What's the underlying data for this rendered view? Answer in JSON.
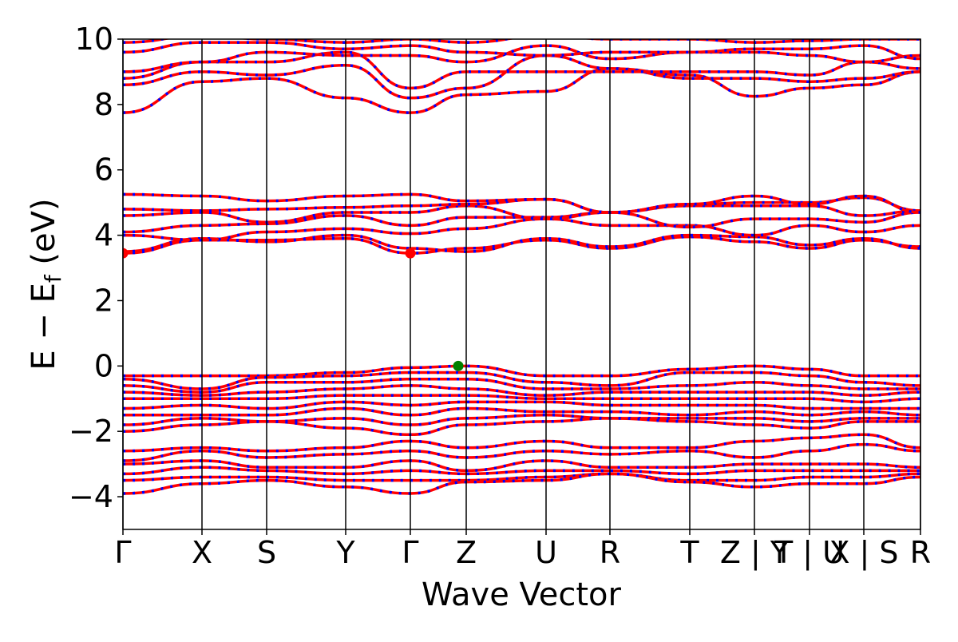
{
  "chart_data": {
    "type": "line",
    "title": "",
    "xlabel": "Wave Vector",
    "ylabel": "E − E",
    "ylabel_sub": "f",
    "ylabel_unit": " (eV)",
    "ylim": [
      -5,
      10
    ],
    "yticks": [
      -4,
      -2,
      0,
      2,
      4,
      6,
      8,
      10
    ],
    "ytick_labels": [
      "−4",
      "−2",
      "0",
      "2",
      "4",
      "6",
      "8",
      "10"
    ],
    "kpoints": [
      0,
      0.99,
      1.8,
      2.79,
      3.6,
      4.3,
      5.3,
      6.1,
      7.1,
      7.91,
      8.6,
      9.28,
      9.99
    ],
    "klabels": [
      "Γ",
      "X",
      "S",
      "Y",
      "Γ",
      "Z",
      "U",
      "R",
      "T",
      "Z | Y",
      "T | U",
      "X | S",
      "R"
    ],
    "series_colors": {
      "line": "#ff0000",
      "dash": "#0000ff"
    },
    "bands": [
      [
        3.45,
        3.85,
        3.85,
        3.9,
        3.45,
        3.6,
        3.85,
        3.6,
        3.95,
        3.8,
        3.6,
        3.85,
        3.65
      ],
      [
        3.5,
        3.9,
        3.8,
        4.0,
        3.6,
        3.5,
        3.9,
        3.65,
        4.0,
        3.95,
        3.7,
        3.9,
        3.6
      ],
      [
        4.0,
        3.85,
        4.1,
        4.2,
        4.05,
        4.2,
        4.5,
        4.3,
        4.3,
        4.0,
        4.3,
        4.1,
        4.3
      ],
      [
        4.1,
        4.3,
        4.35,
        4.6,
        4.3,
        4.55,
        4.55,
        4.7,
        4.25,
        4.5,
        4.5,
        4.4,
        4.7
      ],
      [
        4.6,
        4.7,
        4.4,
        4.7,
        4.7,
        4.9,
        4.5,
        4.7,
        4.9,
        4.9,
        4.9,
        4.6,
        4.75
      ],
      [
        4.8,
        4.75,
        4.8,
        4.85,
        4.9,
        4.95,
        5.1,
        4.7,
        4.95,
        5.0,
        5.0,
        5.15,
        4.75
      ],
      [
        5.25,
        5.2,
        5.05,
        5.2,
        5.25,
        5.05,
        5.1,
        4.7,
        4.95,
        5.2,
        4.95,
        5.2,
        4.7
      ],
      [
        7.75,
        8.7,
        8.8,
        8.2,
        7.75,
        8.3,
        8.4,
        9.1,
        8.9,
        8.25,
        8.5,
        8.6,
        9.0
      ],
      [
        8.6,
        9.0,
        8.9,
        9.2,
        8.2,
        8.5,
        9.5,
        9.1,
        8.8,
        8.8,
        8.7,
        8.8,
        9.0
      ],
      [
        8.8,
        9.3,
        9.3,
        9.6,
        8.5,
        9.0,
        9.0,
        9.0,
        9.0,
        9.0,
        8.9,
        9.3,
        9.1
      ],
      [
        9.0,
        9.3,
        9.6,
        9.5,
        9.5,
        9.3,
        9.8,
        9.4,
        9.6,
        9.6,
        9.5,
        9.3,
        9.5
      ],
      [
        9.6,
        9.9,
        9.9,
        9.7,
        9.8,
        9.6,
        9.5,
        9.6,
        9.6,
        9.7,
        9.7,
        9.8,
        9.4
      ],
      [
        9.9,
        10.1,
        10.0,
        9.9,
        10.0,
        9.9,
        10.1,
        10,
        10,
        9.9,
        9.95,
        10.0,
        10
      ],
      [
        -0.3,
        -0.3,
        -0.3,
        -0.2,
        -0.05,
        0.0,
        -0.3,
        -0.3,
        -0.1,
        0.0,
        -0.1,
        -0.3,
        -0.3
      ],
      [
        -0.4,
        -0.7,
        -0.35,
        -0.3,
        -0.2,
        -0.2,
        -0.5,
        -0.6,
        -0.2,
        -0.2,
        -0.3,
        -0.5,
        -0.6
      ],
      [
        -0.6,
        -0.8,
        -0.5,
        -0.5,
        -0.4,
        -0.4,
        -0.7,
        -0.7,
        -0.6,
        -0.5,
        -0.6,
        -0.7,
        -0.7
      ],
      [
        -0.8,
        -0.9,
        -0.8,
        -0.7,
        -0.6,
        -0.7,
        -0.9,
        -0.8,
        -0.8,
        -0.8,
        -0.8,
        -0.9,
        -0.8
      ],
      [
        -1.0,
        -1.0,
        -1.0,
        -0.9,
        -0.9,
        -0.9,
        -1.0,
        -1.0,
        -1.0,
        -1.0,
        -1.0,
        -1.1,
        -1.0
      ],
      [
        -1.3,
        -1.2,
        -1.3,
        -1.1,
        -1.2,
        -1.1,
        -1.1,
        -1.2,
        -1.2,
        -1.2,
        -1.3,
        -1.3,
        -1.3
      ],
      [
        -1.5,
        -1.5,
        -1.5,
        -1.3,
        -1.5,
        -1.3,
        -1.4,
        -1.4,
        -1.5,
        -1.4,
        -1.5,
        -1.4,
        -1.5
      ],
      [
        -1.8,
        -1.6,
        -1.7,
        -1.6,
        -1.8,
        -1.6,
        -1.5,
        -1.6,
        -1.6,
        -1.6,
        -1.7,
        -1.6,
        -1.6
      ],
      [
        -2.0,
        -1.8,
        -1.7,
        -1.9,
        -2.1,
        -1.8,
        -1.7,
        -1.6,
        -1.7,
        -1.8,
        -1.9,
        -1.7,
        -1.7
      ],
      [
        -2.6,
        -2.5,
        -2.6,
        -2.5,
        -2.3,
        -2.5,
        -2.3,
        -2.5,
        -2.5,
        -2.3,
        -2.2,
        -2.1,
        -2.5
      ],
      [
        -2.9,
        -2.6,
        -2.8,
        -2.7,
        -2.6,
        -2.8,
        -2.6,
        -2.7,
        -2.6,
        -2.8,
        -2.6,
        -2.4,
        -2.6
      ],
      [
        -3.0,
        -2.9,
        -3.1,
        -3.1,
        -2.9,
        -3.2,
        -2.9,
        -3.1,
        -3.1,
        -3.0,
        -3.0,
        -3.0,
        -3.1
      ],
      [
        -3.3,
        -3.1,
        -3.2,
        -3.3,
        -3.2,
        -3.3,
        -3.2,
        -3.2,
        -3.3,
        -3.2,
        -3.2,
        -3.2,
        -3.2
      ],
      [
        -3.5,
        -3.4,
        -3.4,
        -3.5,
        -3.5,
        -3.5,
        -3.4,
        -3.3,
        -3.5,
        -3.5,
        -3.4,
        -3.4,
        -3.3
      ],
      [
        -3.9,
        -3.6,
        -3.5,
        -3.7,
        -3.9,
        -3.55,
        -3.5,
        -3.3,
        -3.55,
        -3.7,
        -3.6,
        -3.6,
        -3.4
      ]
    ],
    "markers": [
      {
        "name": "cbm",
        "k": 0,
        "e": 3.45,
        "color": "#ff0000"
      },
      {
        "name": "cbm",
        "k": 3.6,
        "e": 3.45,
        "color": "#ff0000"
      },
      {
        "name": "vbm",
        "k": 4.2,
        "e": 0.0,
        "color": "#008000"
      }
    ]
  }
}
